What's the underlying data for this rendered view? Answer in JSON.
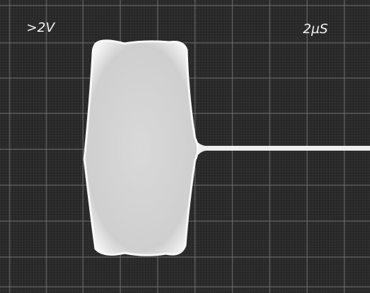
{
  "screen": {
    "volts_per_div": ">2V",
    "time_per_div": "2µS"
  }
}
